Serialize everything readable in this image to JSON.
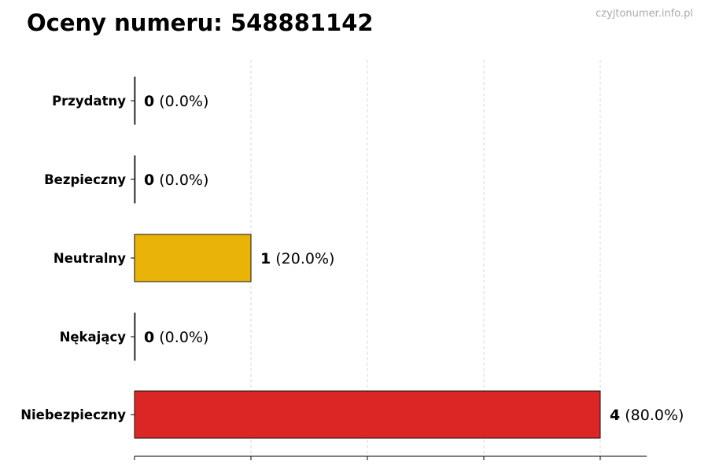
{
  "title": "Oceny numeru: 548881142",
  "watermark": "czyjtonumer.info.pl",
  "chart_data": {
    "type": "bar",
    "orientation": "horizontal",
    "title": "Oceny numeru: 548881142",
    "categories": [
      "Przydatny",
      "Bezpieczny",
      "Neutralny",
      "Nękający",
      "Niebezpieczny"
    ],
    "values": [
      0,
      0,
      1,
      0,
      4
    ],
    "labels": [
      {
        "count": "0",
        "pct": "(0.0%)"
      },
      {
        "count": "0",
        "pct": "(0.0%)"
      },
      {
        "count": "1",
        "pct": "(20.0%)"
      },
      {
        "count": "0",
        "pct": "(0.0%)"
      },
      {
        "count": "4",
        "pct": "(80.0%)"
      }
    ],
    "colors": [
      "#22a34a",
      "#3b82f6",
      "#eab308",
      "#f97316",
      "#dc2626"
    ],
    "xlim": [
      0,
      4.4
    ],
    "xticks": [
      0,
      1,
      2,
      3,
      4
    ],
    "grid": "x dashed",
    "xlabel": "",
    "ylabel": ""
  }
}
